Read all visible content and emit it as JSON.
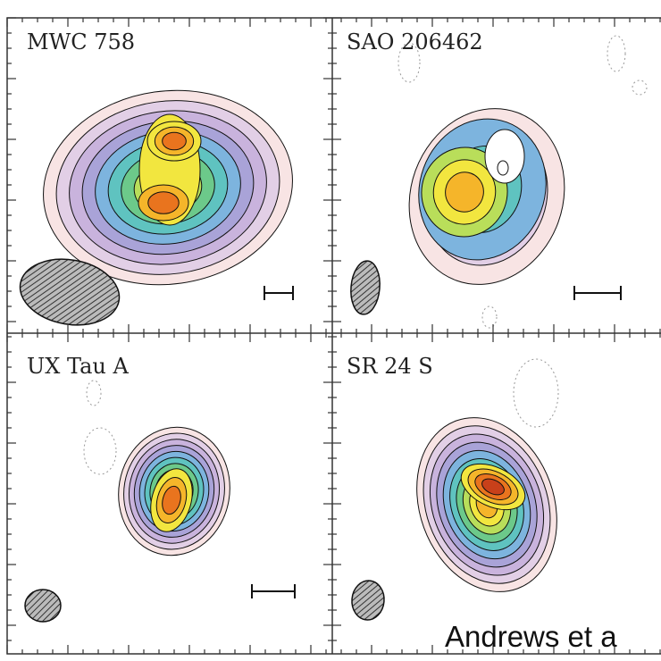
{
  "panels": [
    {
      "label": "MWC 758"
    },
    {
      "label": "SAO 206462"
    },
    {
      "label": "UX Tau A"
    },
    {
      "label": "SR 24 S"
    }
  ],
  "caption": "Andrews et a"
}
